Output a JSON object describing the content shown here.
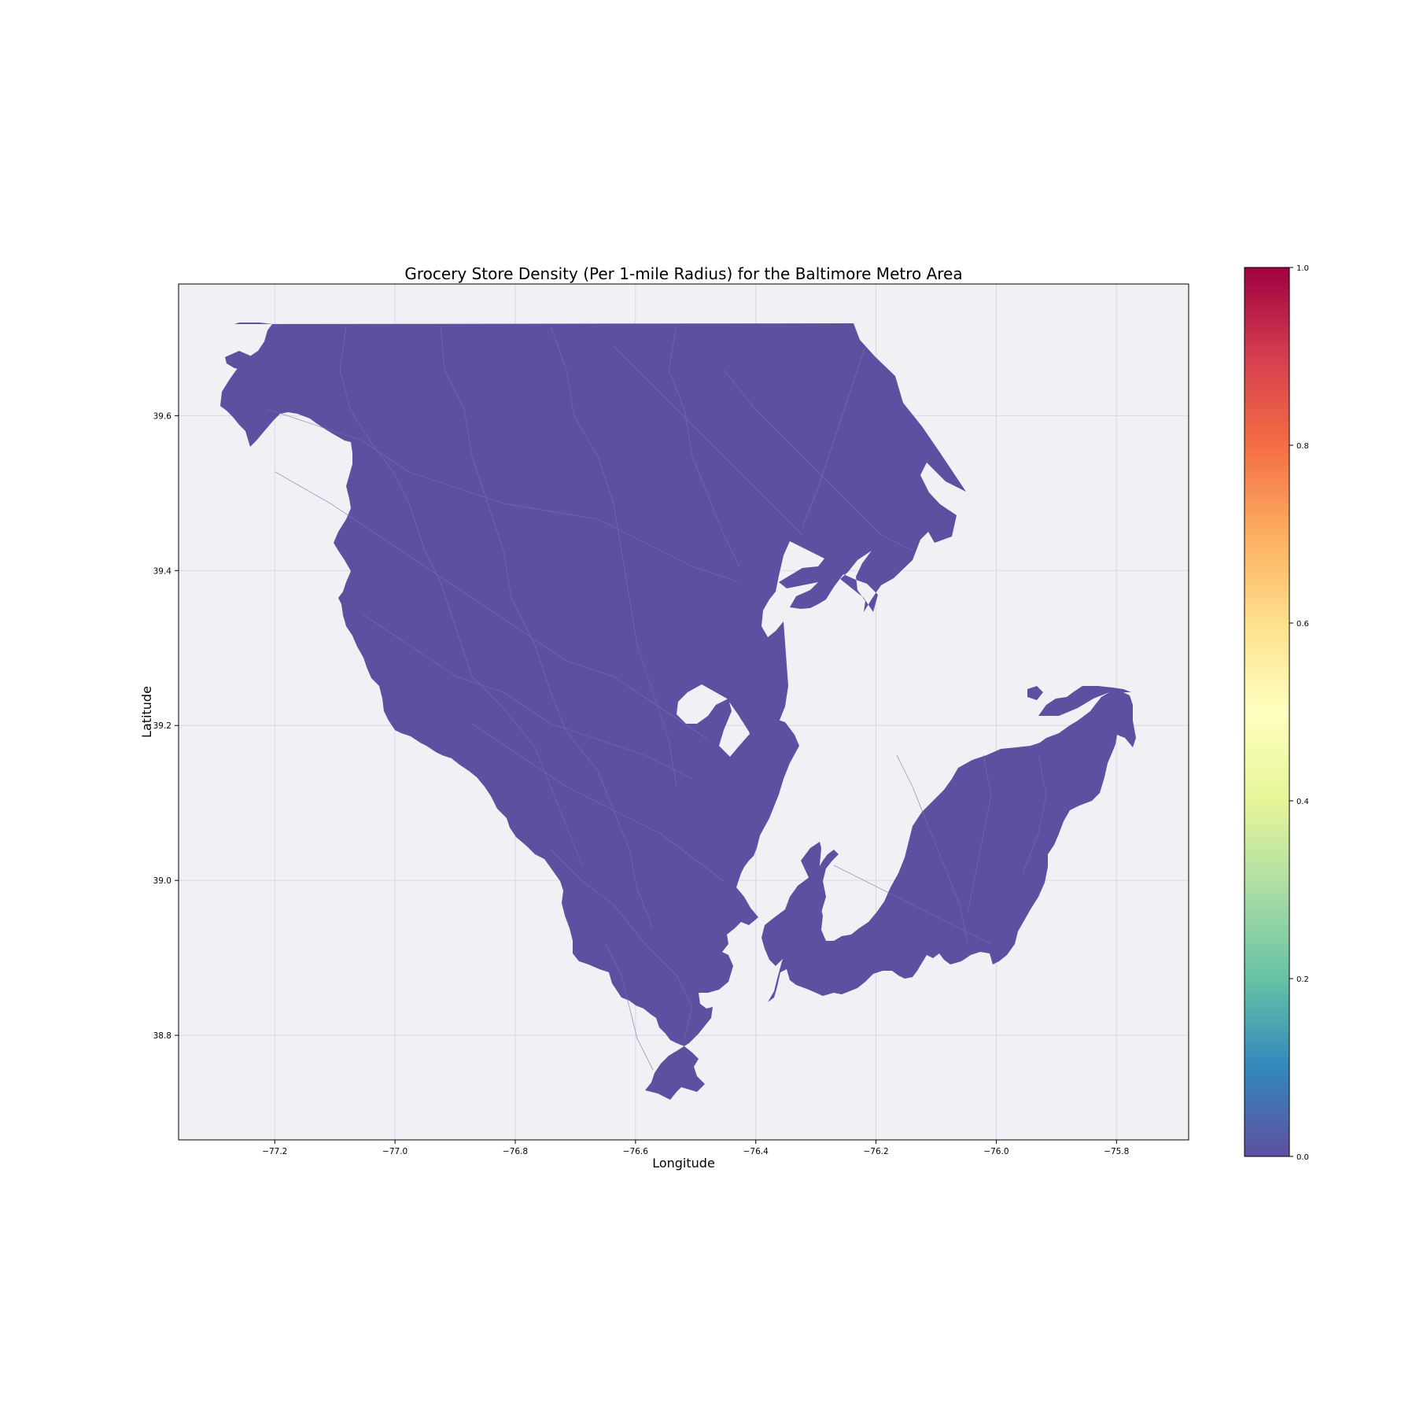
{
  "chart_data": {
    "type": "choropleth",
    "title": "Grocery Store Density (Per 1-mile Radius) for the Baltimore Metro Area",
    "xlabel": "Longitude",
    "ylabel": "Latitude",
    "xlim": [
      -77.36,
      -75.68
    ],
    "ylim": [
      38.665,
      39.77
    ],
    "xticks": [
      -77.2,
      -77.0,
      -76.8,
      -76.6,
      -76.4,
      -76.2,
      -76.0,
      -75.8
    ],
    "xtick_labels": [
      "−77.2",
      "−77.0",
      "−76.8",
      "−76.6",
      "−76.4",
      "−76.2",
      "−76.0",
      "−75.8"
    ],
    "yticks": [
      38.8,
      39.0,
      39.2,
      39.4,
      39.6
    ],
    "ytick_labels": [
      "38.8",
      "39.0",
      "39.2",
      "39.4",
      "39.6"
    ],
    "grid": true,
    "plot_background": "#f0f0f5",
    "fill_color": "#5e50a1",
    "all_region_value": 0.0,
    "colorbar": {
      "colormap": "Spectral_r",
      "range": [
        0.0,
        1.0
      ],
      "ticks": [
        0.0,
        0.2,
        0.4,
        0.6,
        0.8,
        1.0
      ],
      "tick_labels": [
        "0.0",
        "0.2",
        "0.4",
        "0.6",
        "0.8",
        "1.0"
      ],
      "stops": [
        "#5e4fa2",
        "#3288bd",
        "#66c2a5",
        "#abdda4",
        "#e6f598",
        "#ffffbf",
        "#fee08b",
        "#fdae61",
        "#f46d43",
        "#d53e4f",
        "#9e0142"
      ]
    }
  }
}
